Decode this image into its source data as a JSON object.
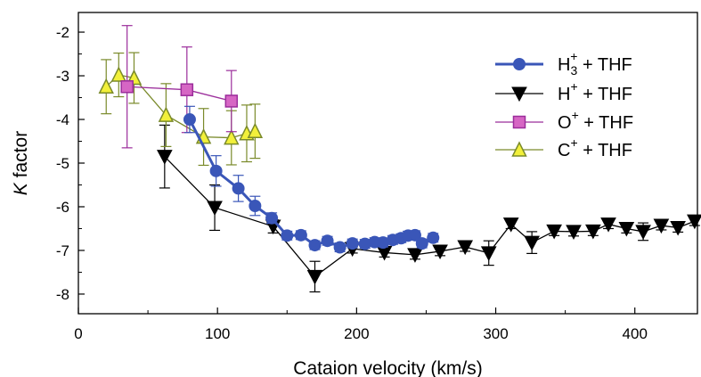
{
  "chart_data": {
    "type": "line",
    "xlabel": "Cataion velocity (km/s)",
    "ylabel_italic": "K",
    "ylabel_rest": " factor",
    "xlim": [
      0,
      445
    ],
    "ylim": [
      -8.45,
      -1.55
    ],
    "xticks": [
      0,
      100,
      200,
      300,
      400
    ],
    "yticks": [
      -8,
      -7,
      -6,
      -5,
      -4,
      -3,
      -2
    ],
    "grid": false,
    "legend_position": "top-right",
    "series": [
      {
        "name": "H3+ + THF",
        "label_base": "H",
        "label_sub": "3",
        "label_sup": "+",
        "label_tail": " + THF",
        "color": "#3a56b8",
        "marker": "circle",
        "line_width": 3,
        "x": [
          80,
          99,
          115,
          127,
          139,
          150,
          160,
          170,
          179,
          188,
          197,
          206,
          213,
          219,
          226,
          232,
          237,
          242,
          247,
          255
        ],
        "y": [
          -4.0,
          -5.18,
          -5.58,
          -5.98,
          -6.26,
          -6.66,
          -6.65,
          -6.88,
          -6.78,
          -6.93,
          -6.84,
          -6.85,
          -6.81,
          -6.82,
          -6.76,
          -6.72,
          -6.66,
          -6.65,
          -6.84,
          -6.71
        ],
        "err": [
          0.3,
          0.35,
          0.3,
          0.22,
          0.12,
          0.1,
          0.1,
          0.1,
          0.1,
          0.1,
          0.1,
          0.1,
          0.1,
          0.1,
          0.1,
          0.1,
          0.1,
          0.1,
          0.1,
          0.1
        ]
      },
      {
        "name": "H+ + THF",
        "label_base": "H",
        "label_sub": "",
        "label_sup": "+",
        "label_tail": " + THF",
        "color": "#000000",
        "marker": "triangle-down",
        "line_width": 1.3,
        "x": [
          62,
          98,
          140,
          170,
          197,
          220,
          242,
          260,
          278,
          295,
          311,
          326,
          342,
          356,
          370,
          381,
          394,
          406,
          419,
          431,
          443
        ],
        "y": [
          -4.85,
          -6.02,
          -6.45,
          -7.6,
          -6.96,
          -7.05,
          -7.1,
          -7.02,
          -6.92,
          -7.06,
          -6.4,
          -6.82,
          -6.56,
          -6.57,
          -6.56,
          -6.4,
          -6.5,
          -6.57,
          -6.43,
          -6.48,
          -6.33
        ],
        "err": [
          0.72,
          0.52,
          0.15,
          0.35,
          0.1,
          0.1,
          0.1,
          0.1,
          0.1,
          0.28,
          0.1,
          0.25,
          0.1,
          0.1,
          0.1,
          0.1,
          0.1,
          0.2,
          0.1,
          0.1,
          0.1
        ]
      },
      {
        "name": "O+ + THF",
        "label_base": "O",
        "label_sub": "",
        "label_sup": "+",
        "label_tail": " + THF",
        "color": "#9b2d9b",
        "fill": "#d666c4",
        "marker": "square",
        "line_width": 1.3,
        "x": [
          35,
          78,
          110
        ],
        "y": [
          -3.25,
          -3.32,
          -3.58
        ],
        "err": [
          1.4,
          0.98,
          0.7
        ]
      },
      {
        "name": "C+ + THF",
        "label_base": "C",
        "label_sub": "",
        "label_sup": "+",
        "label_tail": " + THF",
        "color": "#7a8a2a",
        "fill": "#f2f03a",
        "marker": "triangle-up",
        "line_width": 1.3,
        "x": [
          20,
          29,
          40,
          63,
          90,
          110,
          121,
          127
        ],
        "y": [
          -3.25,
          -2.98,
          -3.05,
          -3.9,
          -4.4,
          -4.42,
          -4.32,
          -4.27
        ],
        "err": [
          0.62,
          0.5,
          0.58,
          0.72,
          0.65,
          0.62,
          0.65,
          0.62
        ]
      }
    ]
  }
}
